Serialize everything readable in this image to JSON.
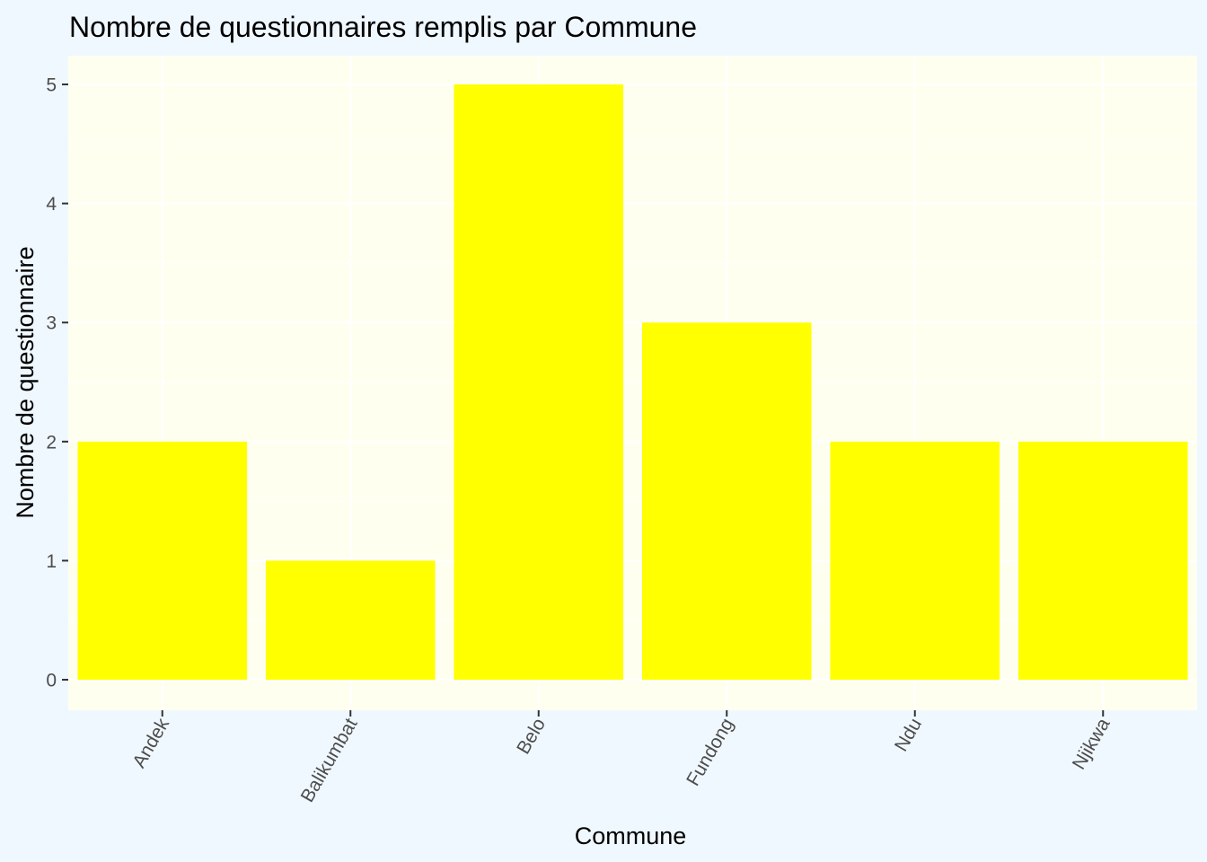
{
  "chart_data": {
    "type": "bar",
    "title": "Nombre de questionnaires remplis par Commune",
    "xlabel": "Commune",
    "ylabel": "Nombre de questionnaire",
    "categories": [
      "Andek",
      "Balikumbat",
      "Belo",
      "Fundong",
      "Ndu",
      "Njikwa"
    ],
    "values": [
      2,
      1,
      5,
      3,
      2,
      2
    ],
    "ylim": [
      0,
      5
    ],
    "yticks": [
      0,
      1,
      2,
      3,
      4,
      5
    ],
    "grid": true,
    "legend": "none",
    "x_tick_rotation": "rotated",
    "colors": {
      "page_background": "#F0F8FF",
      "panel_background": "#FFFFF0",
      "bar_fill": "#FFFF00",
      "grid": "#FFFFFF"
    }
  }
}
